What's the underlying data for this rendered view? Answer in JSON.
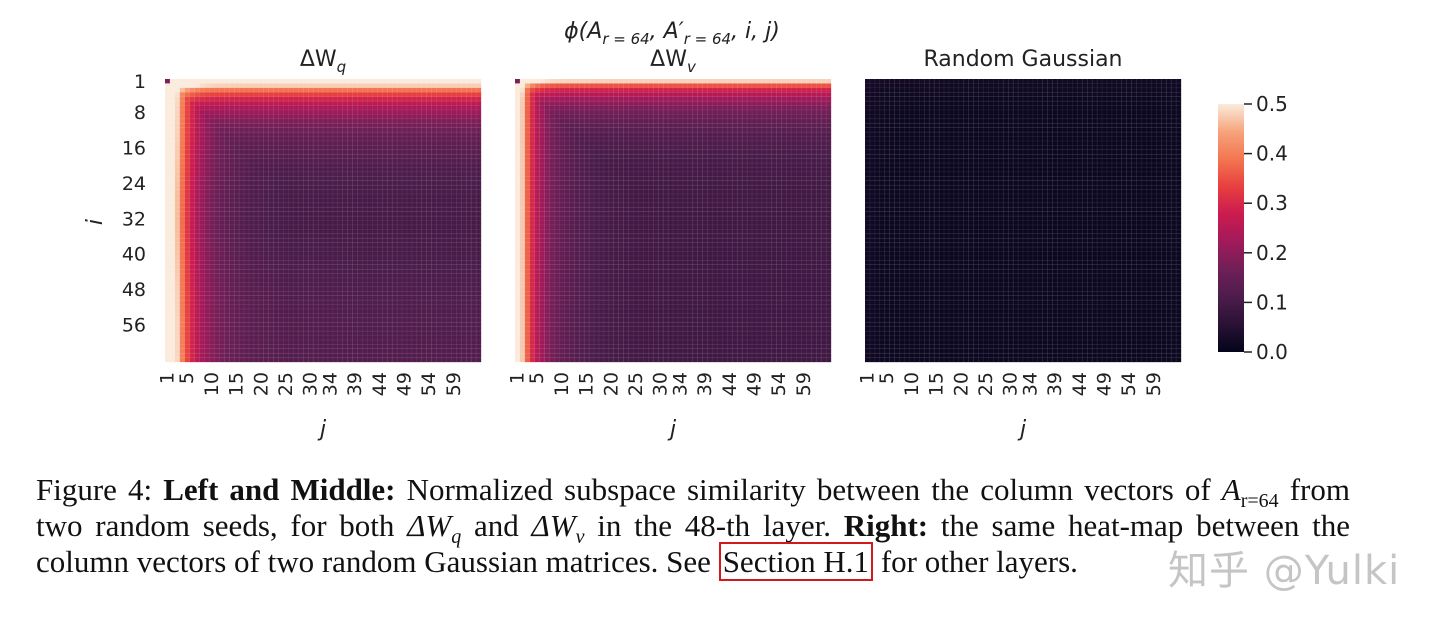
{
  "figure": {
    "suptitle_parts": {
      "phi": "ϕ(A",
      "sub1": "r = 64",
      "mid": ", A′",
      "sub2": "r = 64",
      "end": ", i, j)"
    },
    "chart_data": {
      "type": "heatmap",
      "panels": [
        {
          "name": "ΔW",
          "name_sub": "q",
          "kind": "lora_q"
        },
        {
          "name": "ΔW",
          "name_sub": "v",
          "kind": "lora_v"
        },
        {
          "name": "Random Gaussian",
          "name_sub": "",
          "kind": "random"
        }
      ],
      "grid_size": 64,
      "ylabel": "i",
      "xlabel": "j",
      "y_ticks": [
        "1",
        "8",
        "16",
        "24",
        "32",
        "40",
        "48",
        "56"
      ],
      "x_ticks": [
        "1",
        "5",
        "10",
        "15",
        "20",
        "25",
        "30",
        "34",
        "39",
        "44",
        "49",
        "54",
        "59"
      ],
      "colorbar_ticks": [
        "0.5",
        "0.4",
        "0.3",
        "0.2",
        "0.1",
        "0.0"
      ],
      "value_range": [
        0.0,
        0.5
      ],
      "colormap": "rocket",
      "colormap_stops": [
        "#03051a",
        "#2a1135",
        "#4c1d4b",
        "#701f57",
        "#a11a5b",
        "#cb1b4f",
        "#e83f3f",
        "#f37651",
        "#f6a47c",
        "#faebdd"
      ]
    }
  },
  "caption": {
    "figure_label": "Figure 4:",
    "bold1": "Left and Middle:",
    "text1": " Normalized subspace similarity between the column vectors of ",
    "math1": "A",
    "math1_sub": "r=64",
    "text2": " from two random seeds, for both ",
    "math2": "ΔW",
    "math2_sub": "q",
    "text3": " and ",
    "math3": "ΔW",
    "math3_sub": "v",
    "text4": " in the 48-th layer. ",
    "bold2": "Right:",
    "text5": " the same heat-map between the column vectors of two random Gaussian matrices. See ",
    "link": "Section H.1",
    "text6": " for other layers."
  },
  "watermark": "知乎 @Yulki"
}
